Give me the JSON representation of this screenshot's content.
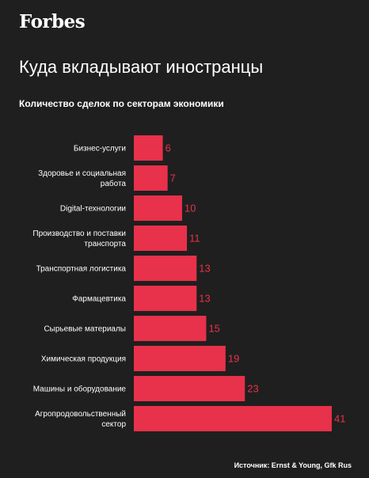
{
  "logo_text": "Forbes",
  "chart_data": {
    "type": "bar",
    "orientation": "horizontal",
    "title": "Куда вкладывают иностранцы",
    "subtitle": "Количество сделок по секторам экономики",
    "categories": [
      [
        "Бизнес-услуги"
      ],
      [
        "Здоровье и социальная",
        "работа"
      ],
      [
        "Digital-технологии"
      ],
      [
        "Производство и поставки",
        "транспорта"
      ],
      [
        "Транспортная логистика"
      ],
      [
        "Фармацевтика"
      ],
      [
        "Сырьевые материалы"
      ],
      [
        "Химическая продукция"
      ],
      [
        "Машины и оборудование"
      ],
      [
        "Агропродовольственный",
        "сектор"
      ]
    ],
    "values": [
      6,
      7,
      10,
      11,
      13,
      13,
      15,
      19,
      23,
      41
    ],
    "bar_color": "#e8314a",
    "label_color": "#e8314a",
    "background_color": "#1f1f1f"
  },
  "source": "Источник: Ernst & Young, Gfk Rus"
}
